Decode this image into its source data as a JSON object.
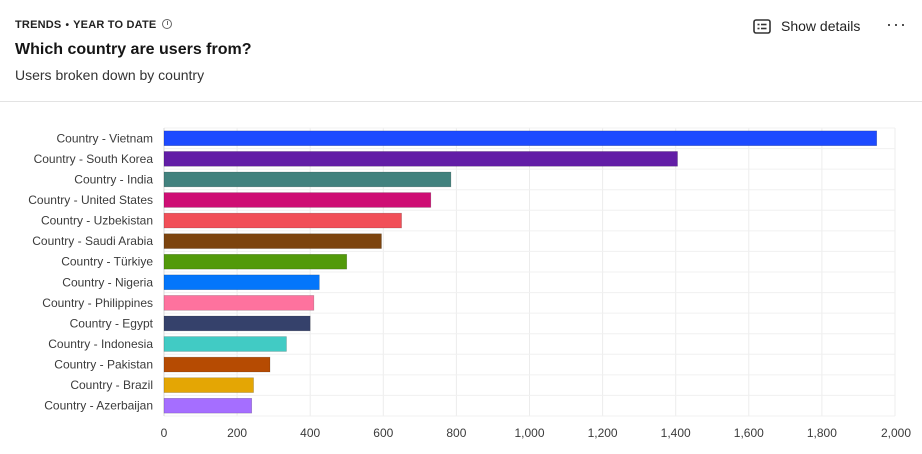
{
  "header": {
    "eyebrow_trends": "TRENDS",
    "eyebrow_bullet": "•",
    "eyebrow_range": "YEAR TO DATE",
    "title": "Which country are users from?",
    "subtitle": "Users broken down by country",
    "show_details_label": "Show details",
    "more_label": "···"
  },
  "chart_data": {
    "type": "bar",
    "orientation": "horizontal",
    "title": "Which country are users from?",
    "subtitle": "Users broken down by country",
    "xlabel": "",
    "ylabel": "",
    "xlim": [
      0,
      2000
    ],
    "grid": true,
    "categories": [
      "Country - Vietnam",
      "Country - South Korea",
      "Country - India",
      "Country - United States",
      "Country - Uzbekistan",
      "Country - Saudi Arabia",
      "Country - Türkiye",
      "Country - Nigeria",
      "Country - Philippines",
      "Country - Egypt",
      "Country - Indonesia",
      "Country - Pakistan",
      "Country - Brazil",
      "Country - Azerbaijan"
    ],
    "values": [
      1950,
      1405,
      785,
      730,
      650,
      595,
      500,
      425,
      410,
      400,
      335,
      290,
      245,
      240
    ],
    "colors": [
      "#1d4aff",
      "#621da6",
      "#42827e",
      "#ce0e74",
      "#f14f58",
      "#7c440e",
      "#529a0a",
      "#0476fb",
      "#fe729e",
      "#35416b",
      "#41cbc4",
      "#b64b02",
      "#e4a604",
      "#a56eff"
    ],
    "x_ticks": [
      "0",
      "200",
      "400",
      "600",
      "800",
      "1,000",
      "1,200",
      "1,400",
      "1,600",
      "1,800",
      "2,000"
    ]
  }
}
